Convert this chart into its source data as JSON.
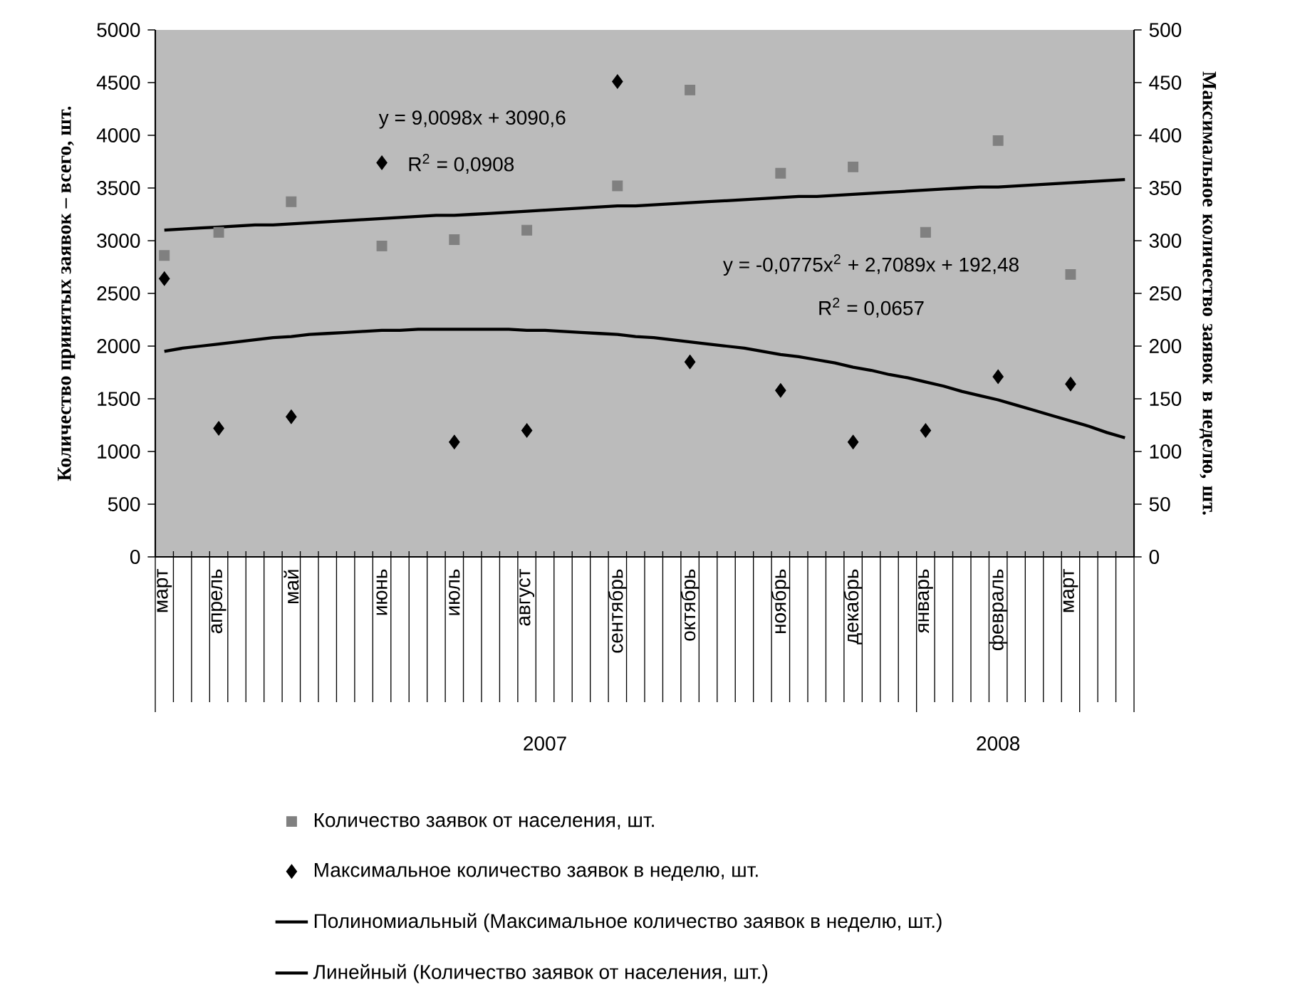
{
  "chart_data": {
    "type": "scatter",
    "categories": [
      "март",
      null,
      null,
      "апрель",
      null,
      null,
      null,
      "май",
      null,
      null,
      null,
      null,
      "июнь",
      null,
      null,
      null,
      "июль",
      null,
      null,
      null,
      "август",
      null,
      null,
      null,
      null,
      "сентябрь",
      null,
      null,
      null,
      "октябрь",
      null,
      null,
      null,
      null,
      "ноябрь",
      null,
      null,
      null,
      "декабрь",
      null,
      null,
      null,
      "январь",
      null,
      null,
      null,
      "февраль",
      null,
      null,
      null,
      "март",
      null,
      null,
      null
    ],
    "series": [
      {
        "name": "Количество заявок от населения, шт.",
        "marker": "square",
        "color": "#808080",
        "values": [
          2860,
          null,
          null,
          3080,
          null,
          null,
          null,
          3370,
          null,
          null,
          null,
          null,
          2950,
          null,
          null,
          null,
          3010,
          null,
          null,
          null,
          3100,
          null,
          null,
          null,
          null,
          3520,
          null,
          null,
          null,
          4430,
          null,
          null,
          null,
          null,
          3640,
          null,
          null,
          null,
          3700,
          null,
          null,
          null,
          3080,
          null,
          null,
          null,
          3950,
          null,
          null,
          null,
          2680,
          null,
          null,
          null
        ]
      },
      {
        "name": "Максимальное количество заявок в неделю, шт.",
        "marker": "diamond",
        "axis": "y2",
        "color": "#000000",
        "values": [
          264,
          null,
          null,
          122,
          null,
          null,
          null,
          133,
          null,
          null,
          null,
          null,
          374,
          null,
          null,
          null,
          109,
          null,
          null,
          null,
          120,
          null,
          null,
          null,
          null,
          451,
          null,
          null,
          null,
          185,
          null,
          null,
          null,
          null,
          158,
          null,
          null,
          null,
          109,
          null,
          null,
          null,
          120,
          null,
          null,
          null,
          171,
          null,
          null,
          null,
          164,
          null,
          null,
          null
        ]
      },
      {
        "name": "Полиномиальный (Максимальное количество заявок в неделю, шт.)",
        "type": "line",
        "marker": "none",
        "line_style": "solid",
        "axis": "y2",
        "color": "#000000",
        "values": [
          195,
          198,
          200,
          202,
          204,
          206,
          208,
          209,
          211,
          212,
          213,
          214,
          215,
          215,
          216,
          216,
          216,
          216,
          216,
          216,
          215,
          215,
          214,
          213,
          212,
          211,
          209,
          208,
          206,
          204,
          202,
          200,
          198,
          195,
          192,
          190,
          187,
          184,
          180,
          177,
          173,
          170,
          166,
          162,
          157,
          153,
          149,
          144,
          139,
          134,
          129,
          124,
          118,
          113
        ]
      },
      {
        "name": "Линейный (Количество заявок от населения, шт.)",
        "type": "line",
        "marker": "none",
        "line_style": "solid",
        "color": "#000000",
        "values": [
          3100,
          3110,
          3120,
          3130,
          3140,
          3150,
          3150,
          3160,
          3170,
          3180,
          3190,
          3200,
          3210,
          3220,
          3230,
          3240,
          3240,
          3250,
          3260,
          3270,
          3280,
          3290,
          3300,
          3310,
          3320,
          3330,
          3330,
          3340,
          3350,
          3360,
          3370,
          3380,
          3390,
          3400,
          3410,
          3420,
          3420,
          3430,
          3440,
          3450,
          3460,
          3470,
          3480,
          3490,
          3500,
          3510,
          3510,
          3520,
          3530,
          3540,
          3550,
          3560,
          3570,
          3580
        ]
      }
    ],
    "ylabel": "Количество принятых заявок – всего, шт.",
    "y2label": "Максимальное количество заявок в неделю, шт.",
    "ylim": [
      0,
      5000
    ],
    "yticks": [
      0,
      500,
      1000,
      1500,
      2000,
      2500,
      3000,
      3500,
      4000,
      4500,
      5000
    ],
    "y2lim": [
      0,
      500
    ],
    "y2ticks": [
      0,
      50,
      100,
      150,
      200,
      250,
      300,
      350,
      400,
      450,
      500
    ],
    "annotations": [
      "y = 9,0098x + 3090,6",
      "R$^{2}$ = 0,0908",
      "y = -0,0775x$^{2}$ + 2,7089x + 192,48",
      "R$^{2}$ = 0,0657",
      "2007",
      "2008"
    ],
    "legend": "bottom"
  }
}
